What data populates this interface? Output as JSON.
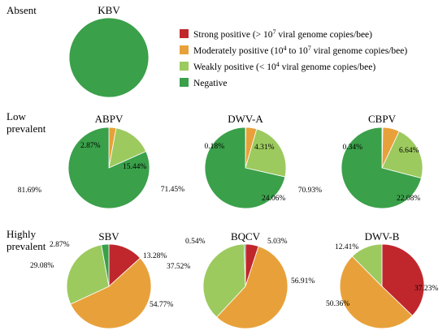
{
  "colors": {
    "strong": "#c0272d",
    "moderate": "#e8a13a",
    "weak": "#9cca5e",
    "negative": "#3aa04a"
  },
  "legend": [
    {
      "key": "strong",
      "label_pre": "Strong positive (> 10",
      "sup": "7",
      "label_post": " viral genome copies/bee)"
    },
    {
      "key": "moderate",
      "label_pre": "Moderately positive (10",
      "sup": "4",
      "label_mid": " to 10",
      "sup2": "7",
      "label_post": " viral genome copies/bee)"
    },
    {
      "key": "weak",
      "label_pre": "Weakly positive (< 10",
      "sup": "4",
      "label_post": " viral genome copies/bee)"
    },
    {
      "key": "negative",
      "label_pre": "Negative",
      "sup": "",
      "label_post": ""
    }
  ],
  "groups": {
    "absent": "Absent",
    "low_line1": "Low",
    "low_line2": "prevalent",
    "high_line1": "Highly",
    "high_line2": "prevalent"
  },
  "chart_data": [
    {
      "type": "pie",
      "title": "KBV",
      "group": "Absent",
      "slices": [
        {
          "name": "Negative",
          "value": 100,
          "label": ""
        }
      ]
    },
    {
      "type": "pie",
      "title": "ABPV",
      "group": "Low prevalent",
      "slices": [
        {
          "name": "Moderately positive",
          "value": 2.87,
          "label": "2.87%"
        },
        {
          "name": "Weakly positive",
          "value": 15.44,
          "label": "15.44%"
        },
        {
          "name": "Negative",
          "value": 81.69,
          "label": "81.69%"
        }
      ]
    },
    {
      "type": "pie",
      "title": "DWV-A",
      "group": "Low prevalent",
      "slices": [
        {
          "name": "Strong positive",
          "value": 0.18,
          "label": "0.18%"
        },
        {
          "name": "Moderately positive",
          "value": 4.31,
          "label": "4.31%"
        },
        {
          "name": "Weakly positive",
          "value": 24.06,
          "label": "24.06%"
        },
        {
          "name": "Negative",
          "value": 71.45,
          "label": "71.45%"
        }
      ]
    },
    {
      "type": "pie",
      "title": "CBPV",
      "group": "Low prevalent",
      "slices": [
        {
          "name": "Strong positive",
          "value": 0.34,
          "label": "0.34%"
        },
        {
          "name": "Moderately positive",
          "value": 6.64,
          "label": "6.64%"
        },
        {
          "name": "Weakly positive",
          "value": 22.08,
          "label": "22.08%"
        },
        {
          "name": "Negative",
          "value": 70.93,
          "label": "70.93%"
        }
      ]
    },
    {
      "type": "pie",
      "title": "SBV",
      "group": "Highly prevalent",
      "slices": [
        {
          "name": "Strong positive",
          "value": 13.28,
          "label": "13.28%"
        },
        {
          "name": "Moderately positive",
          "value": 54.77,
          "label": "54.77%"
        },
        {
          "name": "Weakly positive",
          "value": 29.08,
          "label": "29.08%"
        },
        {
          "name": "Negative",
          "value": 2.87,
          "label": "2.87%"
        }
      ]
    },
    {
      "type": "pie",
      "title": "BQCV",
      "group": "Highly prevalent",
      "slices": [
        {
          "name": "Strong positive",
          "value": 5.03,
          "label": "5.03%"
        },
        {
          "name": "Moderately positive",
          "value": 56.91,
          "label": "56.91%"
        },
        {
          "name": "Weakly positive",
          "value": 37.52,
          "label": "37.52%"
        },
        {
          "name": "Negative",
          "value": 0.54,
          "label": "0.54%"
        }
      ]
    },
    {
      "type": "pie",
      "title": "DWV-B",
      "group": "Highly prevalent",
      "slices": [
        {
          "name": "Strong positive",
          "value": 37.23,
          "label": "37.23%"
        },
        {
          "name": "Moderately positive",
          "value": 50.36,
          "label": "50.36%"
        },
        {
          "name": "Weakly positive",
          "value": 12.41,
          "label": "12.41%"
        }
      ]
    }
  ]
}
